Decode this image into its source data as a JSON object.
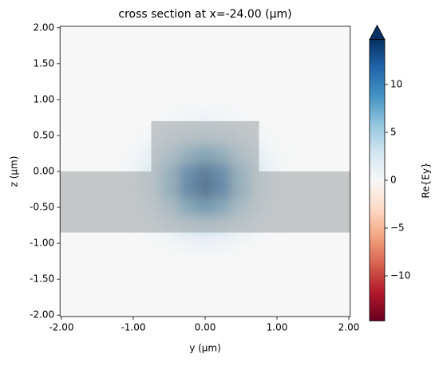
{
  "chart_data": {
    "type": "heatmap",
    "title": "cross section at x=-24.00 (µm)",
    "x_label": "y (µm)",
    "y_label": "z (µm)",
    "colorbar_label": "Re{Ey}",
    "colormap": [
      "#67001f",
      "#b2182b",
      "#d6604d",
      "#f4a582",
      "#fddbc7",
      "#f7f7f7",
      "#d1e5f0",
      "#92c5de",
      "#4393c3",
      "#2166ac",
      "#053061"
    ],
    "colorbar_extend": "max",
    "clim": [
      -14.7,
      14.7
    ],
    "cticks": [
      {
        "value": -10,
        "label": "−10"
      },
      {
        "value": -5,
        "label": "−5"
      },
      0,
      5,
      10
    ],
    "xlim": [
      -2.02,
      2.02
    ],
    "ylim": [
      -2.02,
      2.02
    ],
    "xticks": [
      {
        "value": -2,
        "label": "-2.00"
      },
      {
        "value": -1,
        "label": "-1.00"
      },
      {
        "value": 0,
        "label": "0.00"
      },
      {
        "value": 1,
        "label": "1.00"
      },
      {
        "value": 2,
        "label": "2.00"
      }
    ],
    "yticks": [
      {
        "value": 2,
        "label": "2.00"
      },
      {
        "value": 1.5,
        "label": "1.50"
      },
      {
        "value": 1,
        "label": "1.00"
      },
      {
        "value": 0.5,
        "label": "0.50"
      },
      {
        "value": 0,
        "label": "0.00"
      },
      {
        "value": -0.5,
        "label": "-0.50"
      },
      {
        "value": -1,
        "label": "-1.00"
      },
      {
        "value": -1.5,
        "label": "-1.50"
      },
      {
        "value": -2,
        "label": "-2.00"
      }
    ],
    "structure_color": "#9aa0a2",
    "structures": [
      {
        "x": [
          -2.02,
          2.02
        ],
        "y": [
          -0.85,
          0
        ]
      },
      {
        "x": [
          -0.75,
          0.75
        ],
        "y": [
          0,
          0.7
        ]
      }
    ],
    "x": [
      -2,
      -1.75,
      -1.5,
      -1.25,
      -1,
      -0.75,
      -0.5,
      -0.25,
      0,
      0.25,
      0.5,
      0.75,
      1,
      1.25,
      1.5,
      1.75,
      2
    ],
    "y": [
      -2,
      -1.75,
      -1.5,
      -1.25,
      -1,
      -0.75,
      -0.5,
      -0.25,
      0,
      0.25,
      0.5,
      0.75,
      1,
      1.25,
      1.5,
      1.75,
      2
    ],
    "values": [
      [
        0,
        0,
        0,
        0,
        0,
        0,
        0,
        0,
        0,
        0,
        0,
        0,
        0,
        0,
        0,
        0,
        0
      ],
      [
        0,
        0,
        0,
        0,
        0,
        0,
        0,
        0,
        0,
        0,
        0,
        0,
        0,
        0,
        0,
        0,
        0
      ],
      [
        0,
        0,
        0,
        0,
        0,
        0,
        0,
        0,
        0,
        0,
        0,
        0,
        0,
        0,
        0,
        0,
        0
      ],
      [
        0,
        0,
        0,
        0,
        0,
        0,
        0,
        0.1,
        0.1,
        0.1,
        0,
        0,
        0,
        0,
        0,
        0,
        0
      ],
      [
        0,
        0,
        0,
        0,
        0,
        0.1,
        0.3,
        0.6,
        0.8,
        0.6,
        0.3,
        0.1,
        0,
        0,
        0,
        0,
        0
      ],
      [
        0,
        0,
        0,
        0,
        0.1,
        0.5,
        1.5,
        2.7,
        3.3,
        2.7,
        1.5,
        0.5,
        0.1,
        0,
        0,
        0,
        0
      ],
      [
        0,
        0,
        0,
        0,
        0.3,
        1.3,
        3.8,
        7.0,
        8.6,
        7.0,
        3.8,
        1.3,
        0.3,
        0,
        0,
        0,
        0
      ],
      [
        0,
        0,
        0,
        0.1,
        0.5,
        2.1,
        5.9,
        10.9,
        13.4,
        10.9,
        5.9,
        2.1,
        0.5,
        0.1,
        0,
        0,
        0
      ],
      [
        0,
        0,
        0,
        0.1,
        0.5,
        2.0,
        5.6,
        10.4,
        12.8,
        10.4,
        5.6,
        2.0,
        0.5,
        0.1,
        0,
        0,
        0
      ],
      [
        0,
        0,
        0,
        0,
        0.3,
        1.2,
        3.2,
        6.0,
        7.4,
        6.0,
        3.2,
        1.2,
        0.3,
        0,
        0,
        0,
        0
      ],
      [
        0,
        0,
        0,
        0,
        0.1,
        0.4,
        1.1,
        2.1,
        2.6,
        2.1,
        1.1,
        0.4,
        0.1,
        0,
        0,
        0,
        0
      ],
      [
        0,
        0,
        0,
        0,
        0,
        0.1,
        0.2,
        0.4,
        0.6,
        0.4,
        0.2,
        0.1,
        0,
        0,
        0,
        0,
        0
      ],
      [
        0,
        0,
        0,
        0,
        0,
        0,
        0,
        0.1,
        0.1,
        0.1,
        0,
        0,
        0,
        0,
        0,
        0,
        0
      ],
      [
        0,
        0,
        0,
        0,
        0,
        0,
        0,
        0,
        0,
        0,
        0,
        0,
        0,
        0,
        0,
        0,
        0
      ],
      [
        0,
        0,
        0,
        0,
        0,
        0,
        0,
        0,
        0,
        0,
        0,
        0,
        0,
        0,
        0,
        0,
        0
      ],
      [
        0,
        0,
        0,
        0,
        0,
        0,
        0,
        0,
        0,
        0,
        0,
        0,
        0,
        0,
        0,
        0,
        0
      ],
      [
        0,
        0,
        0,
        0,
        0,
        0,
        0,
        0,
        0,
        0,
        0,
        0,
        0,
        0,
        0,
        0,
        0
      ]
    ]
  }
}
